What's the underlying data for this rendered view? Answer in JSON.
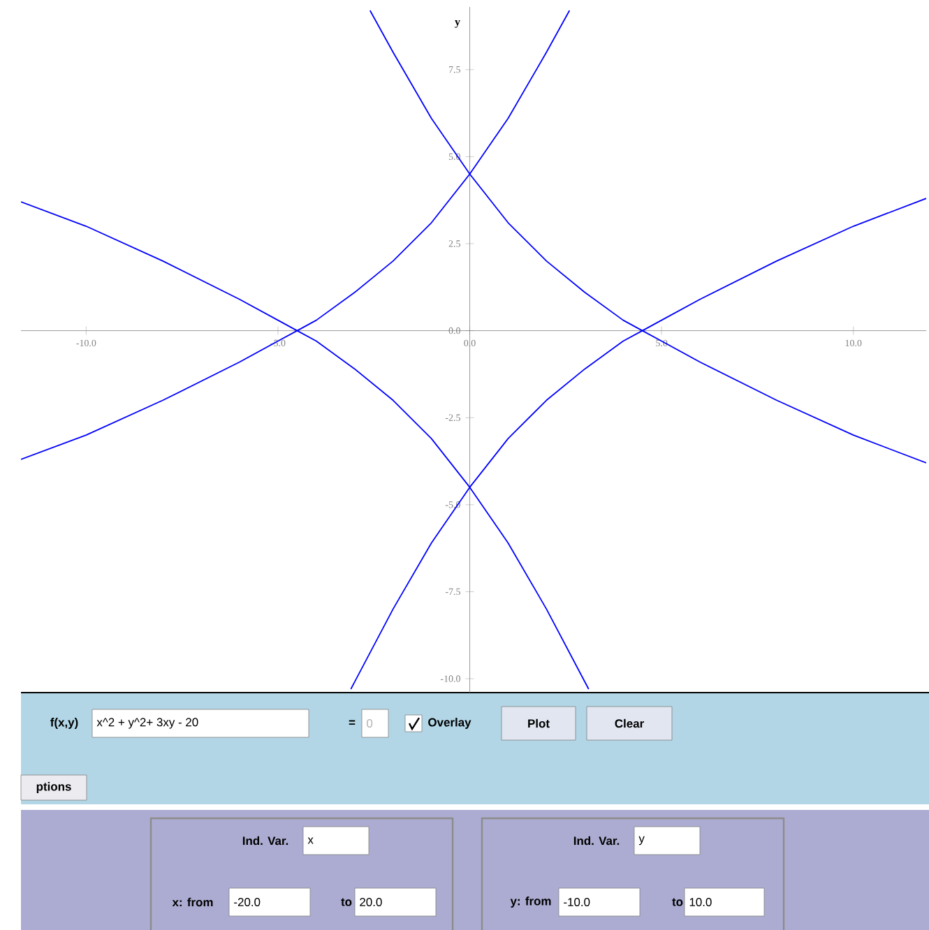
{
  "chart_data": {
    "type": "line",
    "ylabel": "y",
    "xlim": [
      -11.7,
      11.9
    ],
    "ylim": [
      -10.4,
      9.3
    ],
    "xticks": [
      {
        "value": -10,
        "label": "-10.0"
      },
      {
        "value": -5,
        "label": "-5.0"
      },
      {
        "value": 0,
        "label": "0.0"
      },
      {
        "value": 5,
        "label": "5.0"
      },
      {
        "value": 10,
        "label": "10.0"
      }
    ],
    "yticks": [
      {
        "value": -10,
        "label": "-10.0"
      },
      {
        "value": -7.5,
        "label": "-7.5"
      },
      {
        "value": -5,
        "label": "-5.0"
      },
      {
        "value": -2.5,
        "label": "-2.5"
      },
      {
        "value": 0,
        "label": "0.0"
      },
      {
        "value": 2.5,
        "label": "2.5"
      },
      {
        "value": 5,
        "label": "5.0"
      },
      {
        "value": 7.5,
        "label": "7.5"
      }
    ],
    "grid": false,
    "marker": "none",
    "line_style": "solid",
    "series": [
      {
        "color": "#0000ff",
        "x": [
          -2.6,
          -2,
          -1,
          0,
          1,
          2,
          3,
          4,
          4.5,
          5,
          6,
          8,
          10,
          11.9
        ],
        "values": [
          9.2,
          8.0,
          6.1,
          4.5,
          3.1,
          2.0,
          1.1,
          0.3,
          0,
          -0.3,
          -0.9,
          -2.0,
          -3.0,
          -3.8
        ]
      },
      {
        "color": "#0000ff",
        "x": [
          -11.7,
          -10,
          -8,
          -6,
          -5,
          -4.5,
          -4,
          -3,
          -2,
          -1,
          0,
          1,
          2,
          2.6
        ],
        "values": [
          -3.7,
          -3.0,
          -2.0,
          -0.9,
          -0.3,
          0,
          0.3,
          1.1,
          2.0,
          3.1,
          4.5,
          6.1,
          8.0,
          9.2
        ]
      },
      {
        "color": "#0000ff",
        "x": [
          -11.7,
          -10,
          -8,
          -6,
          -5,
          -4.5,
          -4,
          -3,
          -2,
          -1,
          0,
          1,
          2,
          3.1
        ],
        "values": [
          3.7,
          3.0,
          2.0,
          0.9,
          0.3,
          0,
          -0.3,
          -1.1,
          -2.0,
          -3.1,
          -4.5,
          -6.1,
          -8.0,
          -10.3
        ]
      },
      {
        "color": "#0000ff",
        "x": [
          -3.1,
          -2,
          -1,
          0,
          1,
          2,
          3,
          4,
          4.5,
          5,
          6,
          8,
          10,
          11.9
        ],
        "values": [
          -10.3,
          -8.0,
          -6.1,
          -4.5,
          -3.1,
          -2.0,
          -1.1,
          -0.3,
          0,
          0.3,
          0.9,
          2.0,
          3.0,
          3.8
        ]
      }
    ],
    "annotations": [
      "f(x,y)",
      "x^2 + y^2+ 3xy - 20",
      "=",
      "0",
      "Overlay",
      "Plot",
      "Clear",
      "ptions",
      "Ind. Var.",
      "x",
      "x: from",
      "-20.0",
      "to",
      "20.0",
      "Ind. Var.",
      "y",
      "y: from",
      "-10.0",
      "to",
      "10.0"
    ]
  }
}
